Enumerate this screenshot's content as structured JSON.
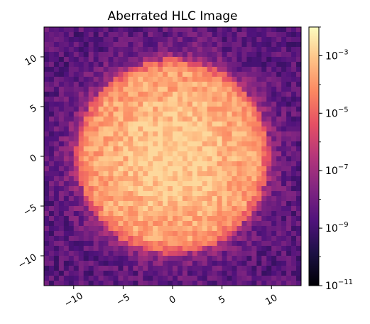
{
  "chart_data": {
    "type": "heatmap",
    "title": "Aberrated HLC Image",
    "xlabel": "",
    "ylabel": "",
    "xlim": [
      -13,
      13
    ],
    "ylim": [
      -13,
      13
    ],
    "x_ticks": [
      -10,
      -5,
      0,
      5,
      10
    ],
    "y_ticks": [
      -10,
      -5,
      0,
      5,
      10
    ],
    "x_tick_labels": [
      "−10",
      "−5",
      "0",
      "5",
      "10"
    ],
    "y_tick_labels": [
      "−10",
      "−5",
      "0",
      "5",
      "10"
    ],
    "colormap": "magma",
    "color_scale": "log",
    "clim": [
      1e-11,
      0.01
    ],
    "colorbar_ticks": [
      {
        "exp": -3,
        "base": "10",
        "sup": "−3"
      },
      {
        "exp": -5,
        "base": "10",
        "sup": "−5"
      },
      {
        "exp": -7,
        "base": "10",
        "sup": "−7"
      },
      {
        "exp": -9,
        "base": "10",
        "sup": "−9"
      },
      {
        "exp": -11,
        "base": "10",
        "sup": "−11"
      }
    ],
    "grid": {
      "pixel_size": 0.5,
      "n": 52,
      "spot_center": [
        0,
        0
      ],
      "spot_radius": 9.8,
      "spot_level": 0.0001,
      "spot_speckle_range": [
        3e-05,
        0.002
      ],
      "core_peak": 0.002,
      "background_level": 3e-09,
      "background_range": [
        3e-10,
        3e-08
      ]
    },
    "grid_on": false,
    "tick_rotation_deg": 30
  }
}
